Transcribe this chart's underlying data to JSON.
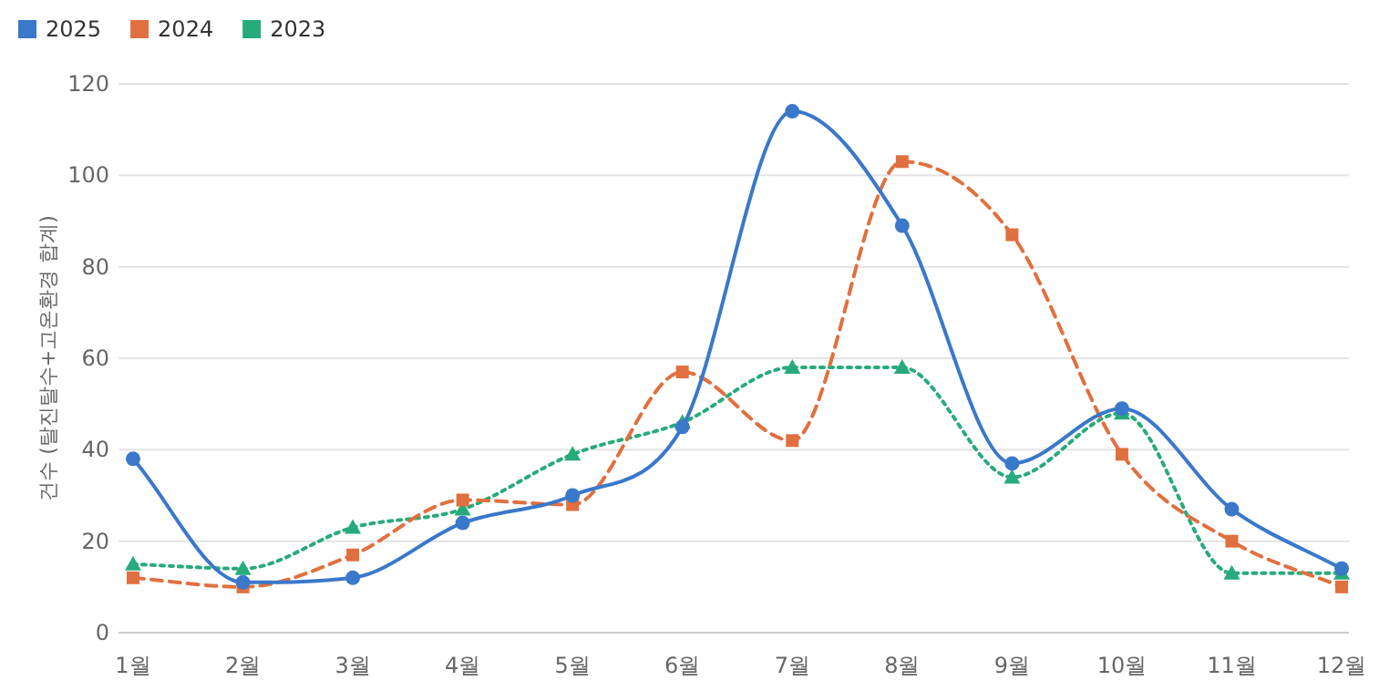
{
  "chart_data": {
    "type": "line",
    "ylabel": "건수 (탈진탈수+고온환경 합계)",
    "categories": [
      "1월",
      "2월",
      "3월",
      "4월",
      "5월",
      "6월",
      "7월",
      "8월",
      "9월",
      "10월",
      "11월",
      "12월"
    ],
    "series": [
      {
        "name": "2025",
        "color": "#3a78c9",
        "marker": "circle",
        "line_style": "solid",
        "values": [
          38,
          11,
          12,
          24,
          30,
          45,
          114,
          89,
          37,
          49,
          27,
          14
        ]
      },
      {
        "name": "2024",
        "color": "#e0703f",
        "marker": "square",
        "line_style": "dashed",
        "values": [
          12,
          10,
          17,
          29,
          28,
          57,
          42,
          103,
          87,
          39,
          20,
          10
        ]
      },
      {
        "name": "2023",
        "color": "#27ab7a",
        "marker": "triangle",
        "line_style": "dotted",
        "values": [
          15,
          14,
          23,
          27,
          39,
          46,
          58,
          58,
          34,
          48,
          13,
          13
        ]
      }
    ],
    "ylim": [
      0,
      120
    ],
    "yticks": [
      0,
      20,
      40,
      60,
      80,
      100,
      120
    ],
    "grid": "y",
    "legend": "top left"
  }
}
